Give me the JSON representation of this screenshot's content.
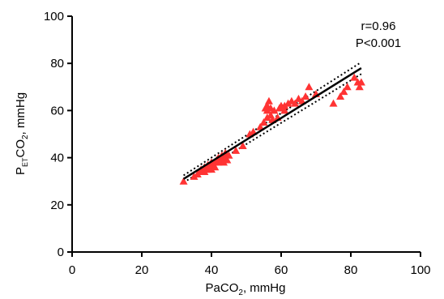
{
  "chart_data": {
    "type": "scatter",
    "xlabel": {
      "main": "PaCO",
      "sub": "2",
      "rest": ", mmHg"
    },
    "ylabel": {
      "main": "P",
      "sub": "ET",
      "mid": "CO",
      "sub2": "2",
      "rest": ", mmHg"
    },
    "xlim": [
      0,
      100
    ],
    "ylim": [
      0,
      100
    ],
    "xticks": [
      0,
      20,
      40,
      60,
      80,
      100
    ],
    "yticks": [
      0,
      20,
      40,
      60,
      80,
      100
    ],
    "xtick_labels": [
      "0",
      "20",
      "40",
      "60",
      "80",
      "100"
    ],
    "ytick_labels": [
      "0",
      "20",
      "40",
      "60",
      "80",
      "100"
    ],
    "grid": false,
    "marker": "triangle",
    "marker_color": "#ff3333",
    "line_color": "#000000",
    "annotations": [
      "r=0.96",
      "P<0.001"
    ],
    "regression": {
      "x": [
        32,
        83
      ],
      "y": [
        31,
        78
      ]
    },
    "ci_upper": {
      "x": [
        32,
        83
      ],
      "y": [
        32.5,
        80.5
      ]
    },
    "ci_lower": {
      "x": [
        32,
        83
      ],
      "y": [
        29.5,
        75.5
      ]
    },
    "points": [
      [
        32,
        30
      ],
      [
        35,
        32
      ],
      [
        36,
        33
      ],
      [
        37,
        34
      ],
      [
        37,
        35
      ],
      [
        38,
        34
      ],
      [
        38,
        36
      ],
      [
        38.5,
        35
      ],
      [
        39,
        35
      ],
      [
        39,
        37
      ],
      [
        39.5,
        36
      ],
      [
        40,
        35
      ],
      [
        40,
        37
      ],
      [
        40,
        38
      ],
      [
        41,
        36
      ],
      [
        41,
        38
      ],
      [
        41.5,
        39
      ],
      [
        42,
        38
      ],
      [
        42,
        40
      ],
      [
        43,
        39
      ],
      [
        43,
        41
      ],
      [
        43.5,
        38
      ],
      [
        44,
        40
      ],
      [
        44,
        42
      ],
      [
        44.5,
        39
      ],
      [
        45,
        41
      ],
      [
        47,
        43
      ],
      [
        49,
        45
      ],
      [
        51,
        50
      ],
      [
        52,
        51
      ],
      [
        54,
        53
      ],
      [
        55,
        55
      ],
      [
        55.5,
        61
      ],
      [
        56,
        57
      ],
      [
        56,
        60
      ],
      [
        56,
        62
      ],
      [
        56.5,
        64
      ],
      [
        57,
        58
      ],
      [
        57,
        61
      ],
      [
        57.5,
        56
      ],
      [
        58,
        60
      ],
      [
        59,
        57
      ],
      [
        59.5,
        61
      ],
      [
        60,
        62
      ],
      [
        60.5,
        61
      ],
      [
        61,
        62
      ],
      [
        61,
        60
      ],
      [
        62,
        63
      ],
      [
        63,
        64
      ],
      [
        64,
        63
      ],
      [
        65,
        65
      ],
      [
        66,
        64
      ],
      [
        67,
        66
      ],
      [
        68,
        70
      ],
      [
        70,
        67
      ],
      [
        75,
        63
      ],
      [
        77,
        66
      ],
      [
        78,
        68
      ],
      [
        79,
        70
      ],
      [
        81,
        74
      ],
      [
        82,
        72
      ],
      [
        82.5,
        70
      ],
      [
        83,
        72
      ]
    ]
  }
}
